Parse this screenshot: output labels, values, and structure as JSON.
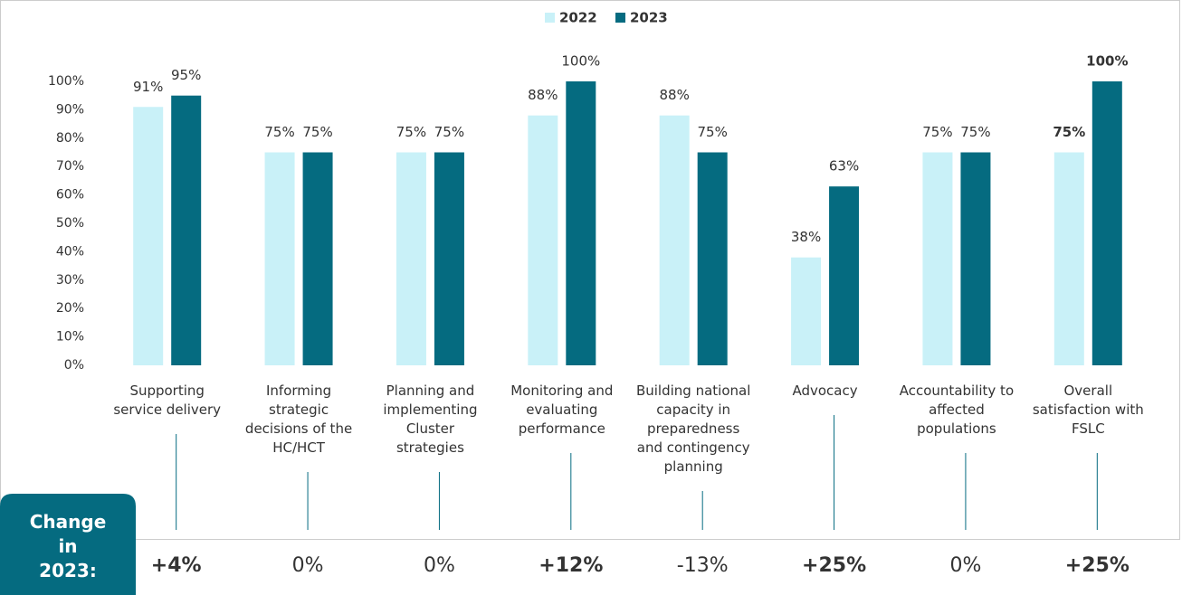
{
  "chart_data": {
    "type": "bar",
    "categories": [
      "Supporting service delivery",
      "Informing strategic decisions of the HC/HCT",
      "Planning and implementing Cluster strategies",
      "Monitoring and evaluating performance",
      "Building national capacity in preparedness and contingency planning",
      "Advocacy",
      "Accountability to affected populations",
      "Overall satisfaction with FSLC"
    ],
    "series": [
      {
        "name": "2022",
        "color": "#c9f1f8",
        "values": [
          91,
          75,
          75,
          88,
          88,
          38,
          75,
          75
        ],
        "value_labels": [
          "91%",
          "75%",
          "75%",
          "88%",
          "88%",
          "38%",
          "75%",
          "75%"
        ]
      },
      {
        "name": "2023",
        "color": "#056b80",
        "values": [
          95,
          75,
          75,
          100,
          75,
          63,
          75,
          100
        ],
        "value_labels": [
          "95%",
          "75%",
          "75%",
          "100%",
          "75%",
          "63%",
          "75%",
          "100%"
        ]
      }
    ],
    "highlight_category": "Overall satisfaction with FSLC",
    "ylim": [
      0,
      100
    ],
    "yticks": [
      {
        "value": 0,
        "label": "0%"
      },
      {
        "value": 10,
        "label": "10%"
      },
      {
        "value": 20,
        "label": "20%"
      },
      {
        "value": 30,
        "label": "30%"
      },
      {
        "value": 40,
        "label": "40%"
      },
      {
        "value": 50,
        "label": "50%"
      },
      {
        "value": 60,
        "label": "60%"
      },
      {
        "value": 70,
        "label": "70%"
      },
      {
        "value": 80,
        "label": "80%"
      },
      {
        "value": 90,
        "label": "90%"
      },
      {
        "value": 100,
        "label": "100%"
      }
    ],
    "grid": false,
    "legend": "top",
    "change": {
      "label": "Change in 2023:",
      "color": "#3aa8b8",
      "box_color": "#056b80",
      "values": [
        4,
        0,
        0,
        12,
        -13,
        25,
        0,
        25
      ],
      "value_labels": [
        "+4%",
        "0%",
        "0%",
        "+12%",
        "-13%",
        "+25%",
        "0%",
        "+25%"
      ]
    }
  }
}
